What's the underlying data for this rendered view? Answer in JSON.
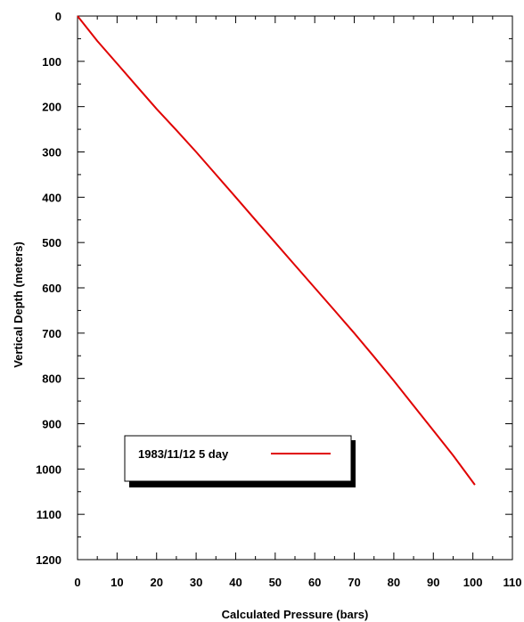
{
  "chart_data": {
    "type": "line",
    "title": "",
    "xlabel": "Calculated Pressure (bars)",
    "ylabel": "Vertical Depth (meters)",
    "xlim": [
      0,
      110
    ],
    "ylim": [
      0,
      1200
    ],
    "y_inverted": true,
    "x_ticks": [
      0,
      10,
      20,
      30,
      40,
      50,
      60,
      70,
      80,
      90,
      100,
      110
    ],
    "y_ticks": [
      0,
      100,
      200,
      300,
      400,
      500,
      600,
      700,
      800,
      900,
      1000,
      1100,
      1200
    ],
    "grid": false,
    "legend_position": "bottom-left",
    "series": [
      {
        "name": "1983/11/12 5 day",
        "color": "#e00000",
        "x": [
          0,
          5,
          10,
          15,
          20,
          25,
          30,
          35,
          40,
          45,
          50,
          55,
          60,
          65,
          70,
          75,
          80,
          85,
          90,
          95,
          100.5
        ],
        "y": [
          0,
          55,
          105,
          155,
          205,
          252,
          300,
          350,
          400,
          450,
          500,
          550,
          600,
          650,
          700,
          752,
          805,
          860,
          915,
          970,
          1035
        ]
      }
    ]
  }
}
